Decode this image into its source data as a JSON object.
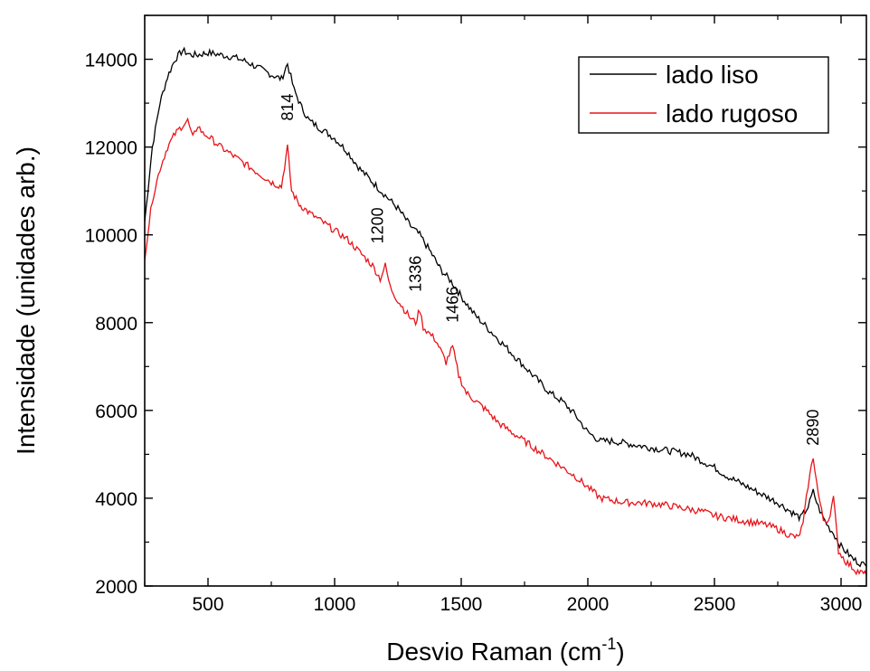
{
  "chart_data": {
    "type": "line",
    "title": "",
    "xlabel": "Desvio Raman (cm",
    "xlabel_sup": "-1",
    "xlabel_end": ")",
    "ylabel": "Intensidade (unidades arb.)",
    "xlim": [
      250,
      3100
    ],
    "ylim": [
      2000,
      15000
    ],
    "xticks": [
      500,
      1000,
      1500,
      2000,
      2500,
      3000
    ],
    "xtick_labels": [
      "500",
      "1000",
      "1500",
      "2000",
      "2500",
      "3000"
    ],
    "yticks": [
      2000,
      4000,
      6000,
      8000,
      10000,
      12000,
      14000
    ],
    "ytick_labels": [
      "2000",
      "4000",
      "6000",
      "8000",
      "10000",
      "12000",
      "14000"
    ],
    "legend_position": "top-right",
    "series": [
      {
        "name": "lado liso",
        "color": "#000000",
        "x": [
          250,
          280,
          310,
          340,
          370,
          400,
          430,
          460,
          500,
          550,
          600,
          650,
          700,
          750,
          790,
          814,
          840,
          870,
          900,
          950,
          1000,
          1050,
          1100,
          1150,
          1200,
          1250,
          1300,
          1336,
          1380,
          1420,
          1466,
          1500,
          1550,
          1600,
          1650,
          1700,
          1750,
          1800,
          1850,
          1900,
          1950,
          2000,
          2050,
          2100,
          2150,
          2200,
          2250,
          2300,
          2350,
          2400,
          2450,
          2500,
          2550,
          2600,
          2650,
          2700,
          2750,
          2800,
          2840,
          2870,
          2890,
          2910,
          2930,
          2950,
          2970,
          3000,
          3050,
          3100
        ],
        "y": [
          10300,
          12000,
          13000,
          13600,
          14000,
          14200,
          14100,
          14100,
          14150,
          14100,
          14050,
          13950,
          13800,
          13650,
          13550,
          13900,
          13300,
          12900,
          12600,
          12400,
          12200,
          11900,
          11500,
          11200,
          10900,
          10600,
          10200,
          10000,
          9600,
          9200,
          8900,
          8600,
          8200,
          7900,
          7600,
          7300,
          7000,
          6700,
          6400,
          6200,
          5900,
          5500,
          5300,
          5300,
          5250,
          5200,
          5150,
          5100,
          5050,
          5000,
          4850,
          4700,
          4500,
          4350,
          4200,
          4050,
          3900,
          3700,
          3550,
          3800,
          4150,
          3800,
          3550,
          3350,
          3200,
          2900,
          2600,
          2450
        ]
      },
      {
        "name": "lado rugoso",
        "color": "#e8141a",
        "x": [
          250,
          280,
          310,
          340,
          370,
          400,
          420,
          440,
          460,
          480,
          500,
          550,
          600,
          650,
          700,
          750,
          790,
          814,
          830,
          860,
          900,
          950,
          1000,
          1050,
          1100,
          1150,
          1180,
          1200,
          1220,
          1250,
          1300,
          1320,
          1336,
          1350,
          1400,
          1440,
          1466,
          1490,
          1520,
          1560,
          1600,
          1650,
          1700,
          1750,
          1800,
          1850,
          1900,
          1950,
          2000,
          2050,
          2100,
          2150,
          2200,
          2250,
          2300,
          2350,
          2400,
          2450,
          2500,
          2550,
          2600,
          2650,
          2700,
          2750,
          2800,
          2830,
          2850,
          2870,
          2890,
          2910,
          2930,
          2950,
          2970,
          2990,
          3020,
          3060,
          3100
        ],
        "y": [
          9500,
          10800,
          11500,
          12000,
          12300,
          12500,
          12600,
          12200,
          12500,
          12300,
          12250,
          12000,
          11800,
          11600,
          11400,
          11200,
          11100,
          12000,
          11000,
          10700,
          10500,
          10300,
          10100,
          9900,
          9600,
          9300,
          9000,
          9300,
          8800,
          8500,
          8100,
          8000,
          8300,
          7900,
          7600,
          7100,
          7450,
          6800,
          6400,
          6200,
          6000,
          5700,
          5500,
          5300,
          5100,
          4900,
          4700,
          4500,
          4250,
          4000,
          3950,
          3900,
          3900,
          3880,
          3850,
          3800,
          3750,
          3700,
          3600,
          3550,
          3500,
          3450,
          3400,
          3300,
          3150,
          3100,
          3400,
          4300,
          4950,
          4100,
          3500,
          3500,
          4000,
          2800,
          2550,
          2350,
          2250
        ]
      }
    ],
    "annotations": [
      {
        "text": "814",
        "x": 814,
        "y": 12600
      },
      {
        "text": "1200",
        "x": 1170,
        "y": 9800
      },
      {
        "text": "1336",
        "x": 1320,
        "y": 8700
      },
      {
        "text": "1466",
        "x": 1466,
        "y": 8000
      },
      {
        "text": "2890",
        "x": 2890,
        "y": 5200
      }
    ]
  }
}
